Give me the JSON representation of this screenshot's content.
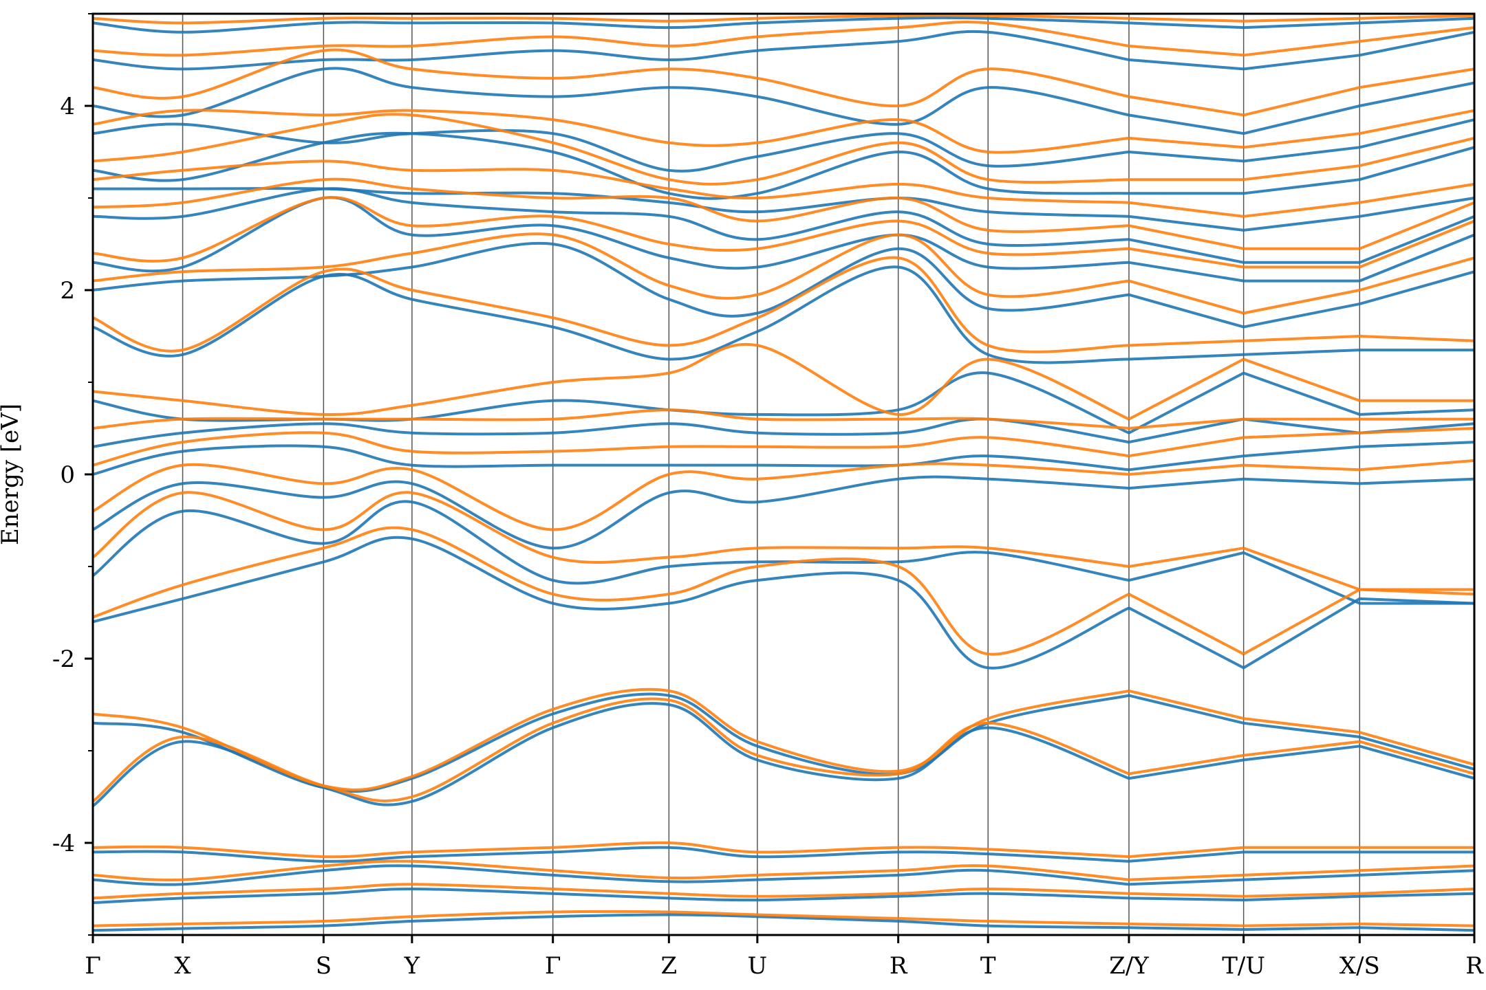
{
  "chart_data": {
    "type": "line",
    "title": "",
    "xlabel": "",
    "ylabel": "Energy [eV]",
    "ylim": [
      -5,
      5
    ],
    "y_ticks": [
      -4,
      -2,
      0,
      2,
      4
    ],
    "y_tick_labels": [
      "-4",
      "-2",
      "0",
      "2",
      "4"
    ],
    "grid": false,
    "k_path_ticks": [
      {
        "label": "Γ",
        "k": 0.0
      },
      {
        "label": "X",
        "k": 0.065
      },
      {
        "label": "S",
        "k": 0.167
      },
      {
        "label": "Y",
        "k": 0.231
      },
      {
        "label": "Γ",
        "k": 0.333
      },
      {
        "label": "Z",
        "k": 0.417
      },
      {
        "label": "U",
        "k": 0.481
      },
      {
        "label": "R",
        "k": 0.583
      },
      {
        "label": "T",
        "k": 0.648
      },
      {
        "label": "Z/Y",
        "k": 0.75
      },
      {
        "label": "T/U",
        "k": 0.833
      },
      {
        "label": "X/S",
        "k": 0.917
      },
      {
        "label": "R",
        "k": 1.0
      }
    ],
    "path_breaks": [
      0.75,
      0.833,
      0.917
    ],
    "band_series": [
      {
        "color": "#1f77b4",
        "bands": [
          [
            -4.95,
            -4.93,
            -4.9,
            -4.85,
            -4.8,
            -4.78,
            -4.8,
            -4.85,
            -4.9,
            -4.92,
            -4.94,
            -4.92,
            -4.95
          ],
          [
            -4.65,
            -4.6,
            -4.55,
            -4.5,
            -4.55,
            -4.6,
            -4.62,
            -4.58,
            -4.55,
            -4.6,
            -4.62,
            -4.58,
            -4.55
          ],
          [
            -4.4,
            -4.45,
            -4.3,
            -4.25,
            -4.35,
            -4.42,
            -4.4,
            -4.35,
            -4.3,
            -4.45,
            -4.4,
            -4.35,
            -4.3
          ],
          [
            -4.1,
            -4.1,
            -4.2,
            -4.15,
            -4.1,
            -4.05,
            -4.15,
            -4.1,
            -4.12,
            -4.2,
            -4.1,
            -4.1,
            -4.1
          ],
          [
            -3.6,
            -2.9,
            -3.4,
            -3.55,
            -2.75,
            -2.5,
            -3.1,
            -3.3,
            -2.75,
            -3.3,
            -3.1,
            -2.95,
            -3.3
          ],
          [
            -2.7,
            -2.8,
            -3.4,
            -3.3,
            -2.6,
            -2.4,
            -2.95,
            -3.25,
            -2.7,
            -2.4,
            -2.7,
            -2.85,
            -3.2
          ],
          [
            -1.6,
            -1.35,
            -0.95,
            -0.7,
            -1.4,
            -1.4,
            -1.15,
            -1.15,
            -2.1,
            -1.45,
            -2.1,
            -1.35,
            -1.4
          ],
          [
            -1.1,
            -0.4,
            -0.75,
            -0.3,
            -1.15,
            -1.0,
            -0.95,
            -0.95,
            -0.85,
            -1.15,
            -0.85,
            -1.4,
            -1.4
          ],
          [
            -0.6,
            -0.1,
            -0.25,
            -0.1,
            -0.8,
            -0.2,
            -0.3,
            -0.05,
            -0.05,
            -0.15,
            -0.05,
            -0.1,
            -0.05
          ],
          [
            0.0,
            0.25,
            0.3,
            0.1,
            0.1,
            0.1,
            0.1,
            0.1,
            0.2,
            0.05,
            0.2,
            0.3,
            0.35
          ],
          [
            0.3,
            0.45,
            0.55,
            0.45,
            0.45,
            0.55,
            0.45,
            0.45,
            0.6,
            0.35,
            0.6,
            0.45,
            0.55
          ],
          [
            0.8,
            0.6,
            0.6,
            0.6,
            0.8,
            0.7,
            0.65,
            0.7,
            1.1,
            0.45,
            1.1,
            0.65,
            0.7
          ],
          [
            1.6,
            1.3,
            2.15,
            1.9,
            1.6,
            1.25,
            1.55,
            2.25,
            1.3,
            1.25,
            1.3,
            1.35,
            1.35
          ],
          [
            2.0,
            2.1,
            2.15,
            2.25,
            2.5,
            1.9,
            1.75,
            2.45,
            1.8,
            1.95,
            1.6,
            1.85,
            2.2
          ],
          [
            2.3,
            2.25,
            3.0,
            2.6,
            2.7,
            2.35,
            2.25,
            2.6,
            2.25,
            2.3,
            2.1,
            2.1,
            2.6
          ],
          [
            2.8,
            2.8,
            3.1,
            2.95,
            2.85,
            2.8,
            2.55,
            2.85,
            2.5,
            2.55,
            2.3,
            2.3,
            2.8
          ],
          [
            3.1,
            3.1,
            3.1,
            3.05,
            3.05,
            2.95,
            2.85,
            3.0,
            2.85,
            2.8,
            2.65,
            2.8,
            3.0
          ],
          [
            3.3,
            3.2,
            3.6,
            3.7,
            3.5,
            3.05,
            3.05,
            3.5,
            3.1,
            3.05,
            3.05,
            3.2,
            3.55
          ],
          [
            3.7,
            3.8,
            3.6,
            3.7,
            3.7,
            3.3,
            3.45,
            3.7,
            3.35,
            3.5,
            3.4,
            3.55,
            3.85
          ],
          [
            4.0,
            3.9,
            4.4,
            4.2,
            4.1,
            4.2,
            4.1,
            3.8,
            4.2,
            3.9,
            3.7,
            4.0,
            4.25
          ],
          [
            4.5,
            4.4,
            4.5,
            4.5,
            4.6,
            4.5,
            4.6,
            4.7,
            4.8,
            4.5,
            4.4,
            4.55,
            4.8
          ],
          [
            4.9,
            4.8,
            4.9,
            4.9,
            4.9,
            4.85,
            4.9,
            4.95,
            4.95,
            4.9,
            4.85,
            4.9,
            4.95
          ]
        ]
      },
      {
        "color": "#ff7f0e",
        "bands": [
          [
            -4.9,
            -4.88,
            -4.85,
            -4.8,
            -4.75,
            -4.75,
            -4.78,
            -4.82,
            -4.85,
            -4.88,
            -4.9,
            -4.88,
            -4.9
          ],
          [
            -4.6,
            -4.55,
            -4.5,
            -4.45,
            -4.5,
            -4.55,
            -4.58,
            -4.55,
            -4.5,
            -4.55,
            -4.58,
            -4.55,
            -4.5
          ],
          [
            -4.35,
            -4.4,
            -4.25,
            -4.2,
            -4.3,
            -4.38,
            -4.35,
            -4.3,
            -4.25,
            -4.4,
            -4.35,
            -4.3,
            -4.25
          ],
          [
            -4.05,
            -4.05,
            -4.15,
            -4.1,
            -4.05,
            -4.0,
            -4.1,
            -4.05,
            -4.07,
            -4.15,
            -4.05,
            -4.05,
            -4.05
          ],
          [
            -3.55,
            -2.85,
            -3.38,
            -3.5,
            -2.7,
            -2.45,
            -3.05,
            -3.25,
            -2.7,
            -3.25,
            -3.05,
            -2.9,
            -3.25
          ],
          [
            -2.6,
            -2.75,
            -3.38,
            -3.28,
            -2.55,
            -2.35,
            -2.9,
            -3.22,
            -2.65,
            -2.35,
            -2.65,
            -2.8,
            -3.15
          ],
          [
            -1.55,
            -1.2,
            -0.8,
            -0.6,
            -1.3,
            -1.3,
            -1.0,
            -1.0,
            -1.95,
            -1.3,
            -1.95,
            -1.25,
            -1.3
          ],
          [
            -0.9,
            -0.2,
            -0.6,
            -0.2,
            -0.9,
            -0.9,
            -0.8,
            -0.8,
            -0.8,
            -1.0,
            -0.8,
            -1.25,
            -1.25
          ],
          [
            -0.4,
            0.1,
            -0.1,
            0.05,
            -0.6,
            0.0,
            -0.05,
            0.1,
            0.1,
            0.0,
            0.1,
            0.05,
            0.15
          ],
          [
            0.1,
            0.35,
            0.45,
            0.25,
            0.25,
            0.3,
            0.3,
            0.3,
            0.4,
            0.2,
            0.4,
            0.45,
            0.5
          ],
          [
            0.5,
            0.6,
            0.6,
            0.6,
            0.6,
            0.7,
            0.6,
            0.6,
            0.6,
            0.5,
            0.6,
            0.6,
            0.6
          ],
          [
            0.9,
            0.8,
            0.65,
            0.75,
            1.0,
            1.1,
            1.4,
            0.65,
            1.25,
            0.6,
            1.25,
            0.8,
            0.8
          ],
          [
            1.7,
            1.35,
            2.2,
            2.0,
            1.7,
            1.4,
            1.7,
            2.35,
            1.4,
            1.4,
            1.45,
            1.5,
            1.45
          ],
          [
            2.1,
            2.2,
            2.25,
            2.4,
            2.6,
            2.05,
            1.95,
            2.6,
            1.95,
            2.1,
            1.75,
            2.0,
            2.35
          ],
          [
            2.4,
            2.35,
            3.0,
            2.7,
            2.8,
            2.5,
            2.45,
            2.75,
            2.4,
            2.45,
            2.25,
            2.25,
            2.75
          ],
          [
            2.9,
            2.95,
            3.2,
            3.1,
            3.0,
            3.0,
            2.75,
            3.0,
            2.65,
            2.7,
            2.45,
            2.45,
            2.95
          ],
          [
            3.2,
            3.3,
            3.4,
            3.3,
            3.3,
            3.1,
            3.0,
            3.15,
            3.0,
            2.95,
            2.8,
            2.95,
            3.15
          ],
          [
            3.4,
            3.5,
            3.8,
            3.9,
            3.6,
            3.2,
            3.2,
            3.6,
            3.2,
            3.2,
            3.2,
            3.35,
            3.65
          ],
          [
            3.8,
            3.95,
            3.9,
            3.95,
            3.85,
            3.6,
            3.6,
            3.85,
            3.5,
            3.65,
            3.55,
            3.7,
            3.95
          ],
          [
            4.2,
            4.1,
            4.6,
            4.4,
            4.3,
            4.4,
            4.3,
            4.0,
            4.4,
            4.1,
            3.9,
            4.2,
            4.4
          ],
          [
            4.6,
            4.55,
            4.65,
            4.65,
            4.75,
            4.65,
            4.75,
            4.85,
            4.9,
            4.65,
            4.55,
            4.7,
            4.85
          ],
          [
            4.95,
            4.9,
            4.95,
            4.95,
            4.95,
            4.92,
            4.95,
            4.98,
            4.98,
            4.95,
            4.92,
            4.95,
            4.98
          ]
        ]
      }
    ]
  }
}
